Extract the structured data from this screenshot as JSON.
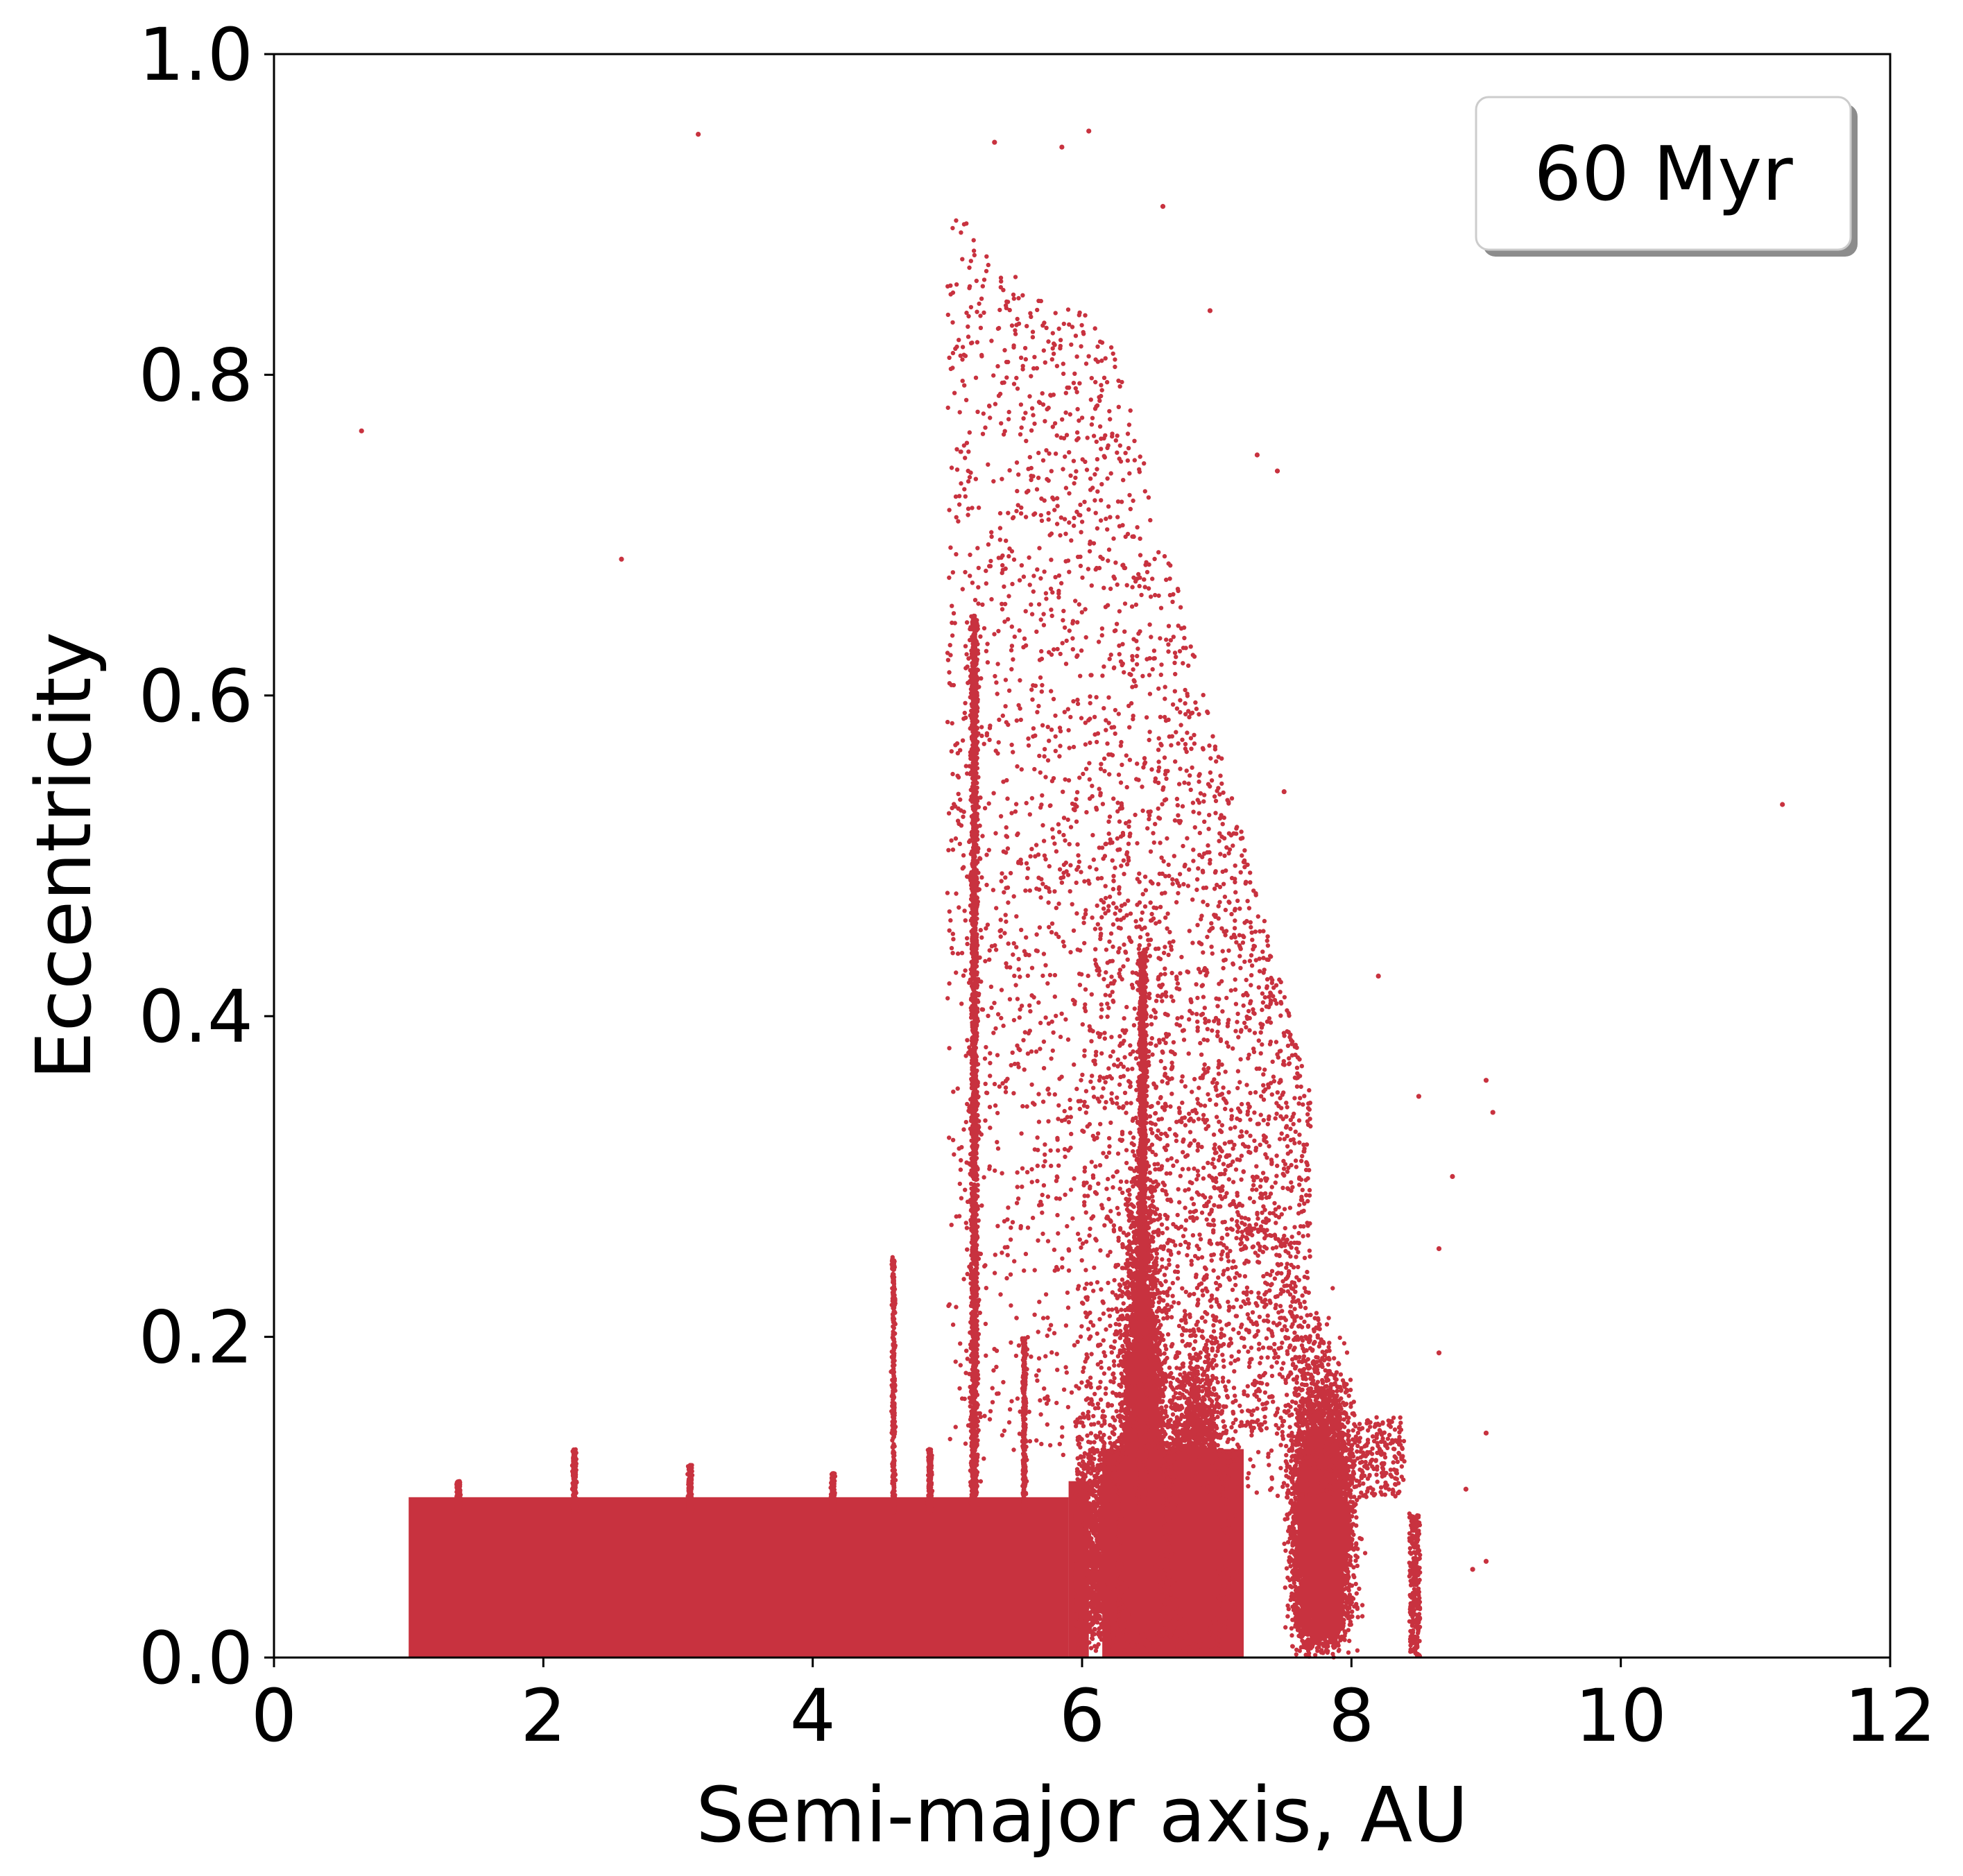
{
  "chart_data": {
    "type": "scatter",
    "title": "",
    "xlabel": "Semi-major axis, AU",
    "ylabel": "Eccentricity",
    "xlim": [
      0,
      12
    ],
    "ylim": [
      0,
      1.0
    ],
    "x_ticks": [
      0,
      2,
      4,
      6,
      8,
      10,
      12
    ],
    "y_ticks": [
      0.0,
      0.2,
      0.4,
      0.6,
      0.8,
      1.0
    ],
    "x_tick_labels": [
      "0",
      "2",
      "4",
      "6",
      "8",
      "10",
      "12"
    ],
    "y_tick_labels": [
      "0.0",
      "0.2",
      "0.4",
      "0.6",
      "0.8",
      "1.0"
    ],
    "grid": false,
    "legend": {
      "text": "60 Myr",
      "placement": "top-right"
    },
    "colors": {
      "points": "#c8323f"
    },
    "dense_regions": [
      {
        "name": "uniform-block",
        "a_range": [
          1.0,
          5.9
        ],
        "e_range": [
          0.0,
          0.1
        ]
      },
      {
        "name": "block-near-6",
        "a_range": [
          5.9,
          6.05
        ],
        "e_range": [
          0.0,
          0.11
        ]
      },
      {
        "name": "block-6.2-7.2",
        "a_range": [
          6.15,
          7.2
        ],
        "e_range": [
          0.0,
          0.13
        ]
      },
      {
        "name": "cluster-6.5",
        "center_a": 6.45,
        "peak_e": 0.42
      },
      {
        "name": "cluster-6.9",
        "center_a": 6.9,
        "peak_e": 0.3
      },
      {
        "name": "cluster-7.8",
        "center_a": 7.75,
        "peak_e": 0.27
      }
    ],
    "spikes": [
      {
        "a": 1.37,
        "max_e": 0.11
      },
      {
        "a": 2.23,
        "max_e": 0.13
      },
      {
        "a": 3.09,
        "max_e": 0.12
      },
      {
        "a": 4.15,
        "max_e": 0.115
      },
      {
        "a": 4.6,
        "max_e": 0.25
      },
      {
        "a": 4.87,
        "max_e": 0.13
      },
      {
        "a": 5.2,
        "max_e": 0.65
      },
      {
        "a": 5.57,
        "max_e": 0.2
      },
      {
        "a": 6.45,
        "max_e": 0.44
      }
    ],
    "outliers": [
      {
        "x": 0.65,
        "y": 0.765
      },
      {
        "x": 2.58,
        "y": 0.685
      },
      {
        "x": 3.15,
        "y": 0.95
      },
      {
        "x": 6.05,
        "y": 0.952
      },
      {
        "x": 5.35,
        "y": 0.945
      },
      {
        "x": 5.85,
        "y": 0.942
      },
      {
        "x": 6.6,
        "y": 0.905
      },
      {
        "x": 6.95,
        "y": 0.84
      },
      {
        "x": 7.3,
        "y": 0.75
      },
      {
        "x": 7.45,
        "y": 0.74
      },
      {
        "x": 7.5,
        "y": 0.54
      },
      {
        "x": 8.2,
        "y": 0.425
      },
      {
        "x": 8.5,
        "y": 0.35
      },
      {
        "x": 8.75,
        "y": 0.3
      },
      {
        "x": 9.0,
        "y": 0.36
      },
      {
        "x": 9.05,
        "y": 0.34
      },
      {
        "x": 8.65,
        "y": 0.255
      },
      {
        "x": 8.65,
        "y": 0.19
      },
      {
        "x": 9.0,
        "y": 0.14
      },
      {
        "x": 8.85,
        "y": 0.105
      },
      {
        "x": 8.9,
        "y": 0.055
      },
      {
        "x": 9.0,
        "y": 0.06
      },
      {
        "x": 11.2,
        "y": 0.532
      }
    ]
  }
}
